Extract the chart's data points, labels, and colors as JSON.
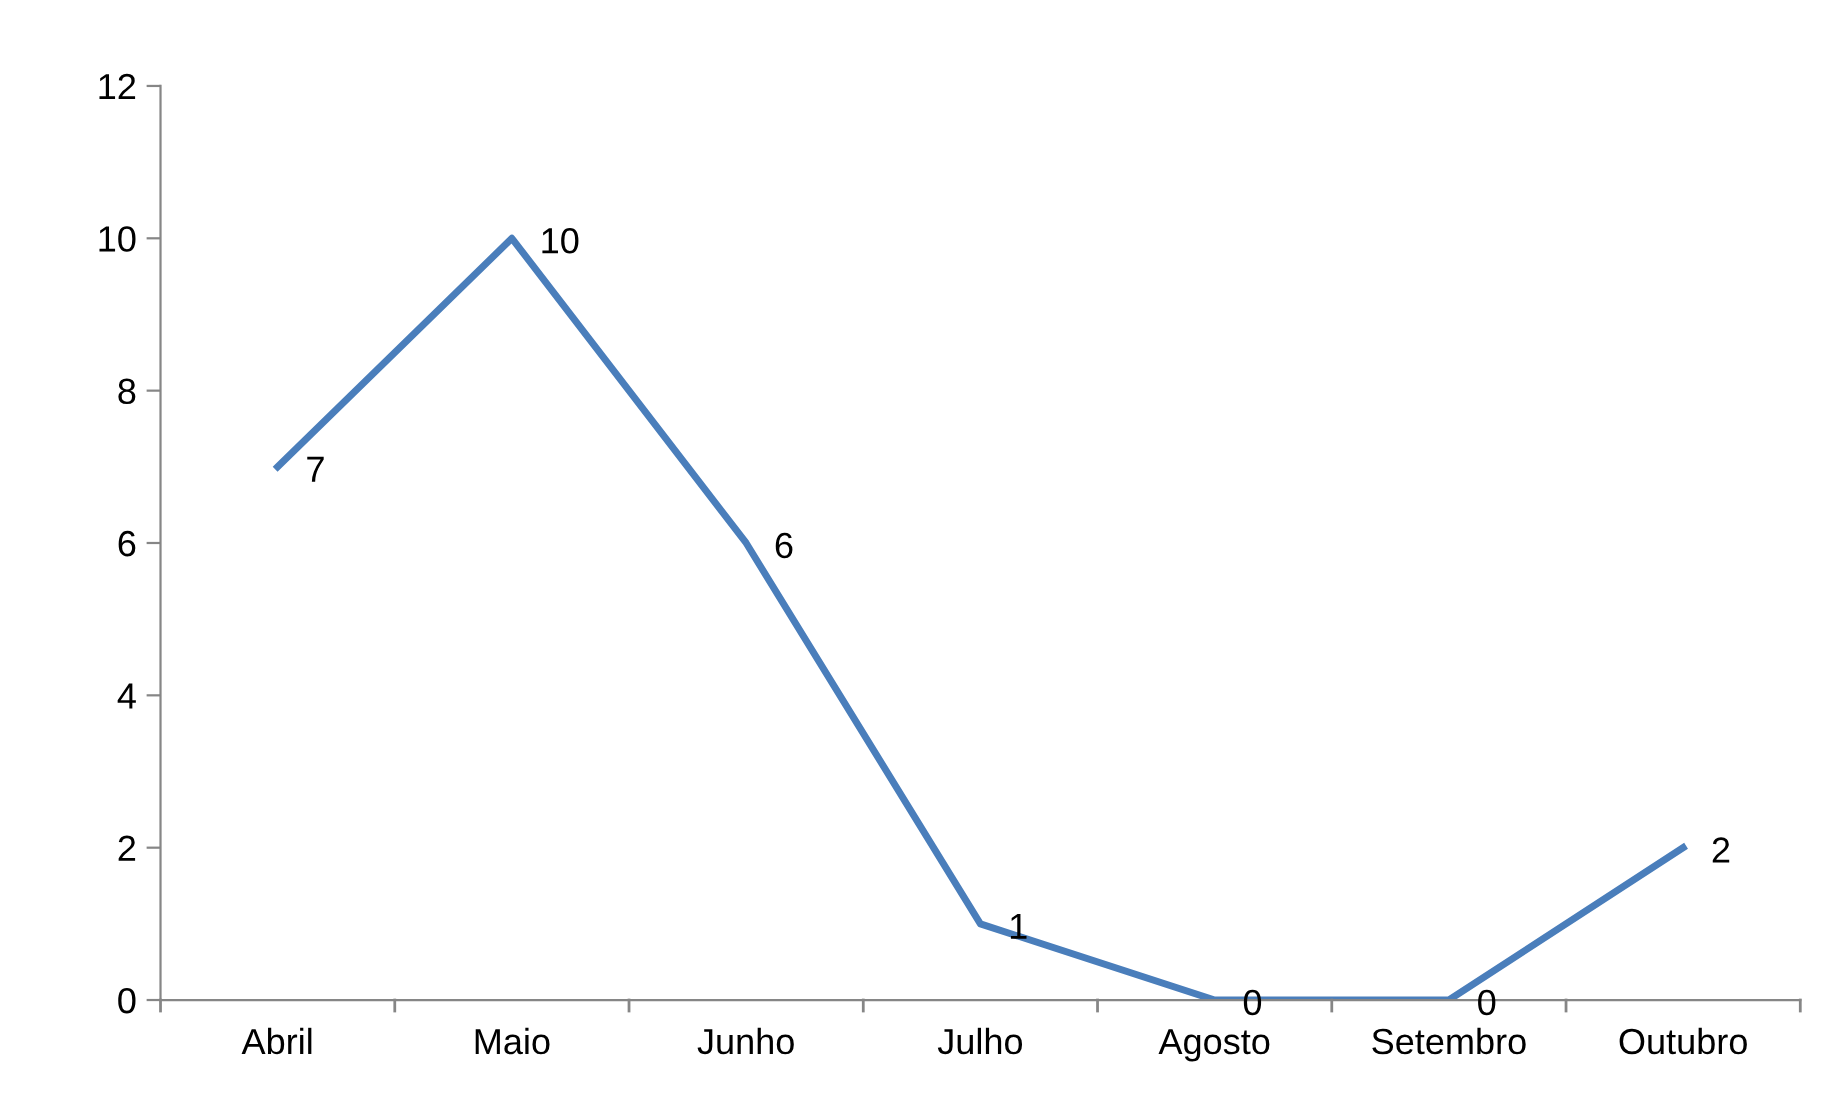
{
  "chart_data": {
    "type": "line",
    "categories": [
      "Abril",
      "Maio",
      "Junho",
      "Julho",
      "Agosto",
      "Setembro",
      "Outubro"
    ],
    "series": [
      {
        "color": "#4a7ebb",
        "values": [
          7,
          10,
          6,
          1,
          0,
          0,
          2
        ]
      }
    ],
    "ylim": [
      0,
      12
    ],
    "yticks": [
      0,
      2,
      4,
      6,
      8,
      10,
      12
    ],
    "grid": false,
    "legend": false,
    "marker": "none",
    "line_style": "solid",
    "data_labels": true
  }
}
